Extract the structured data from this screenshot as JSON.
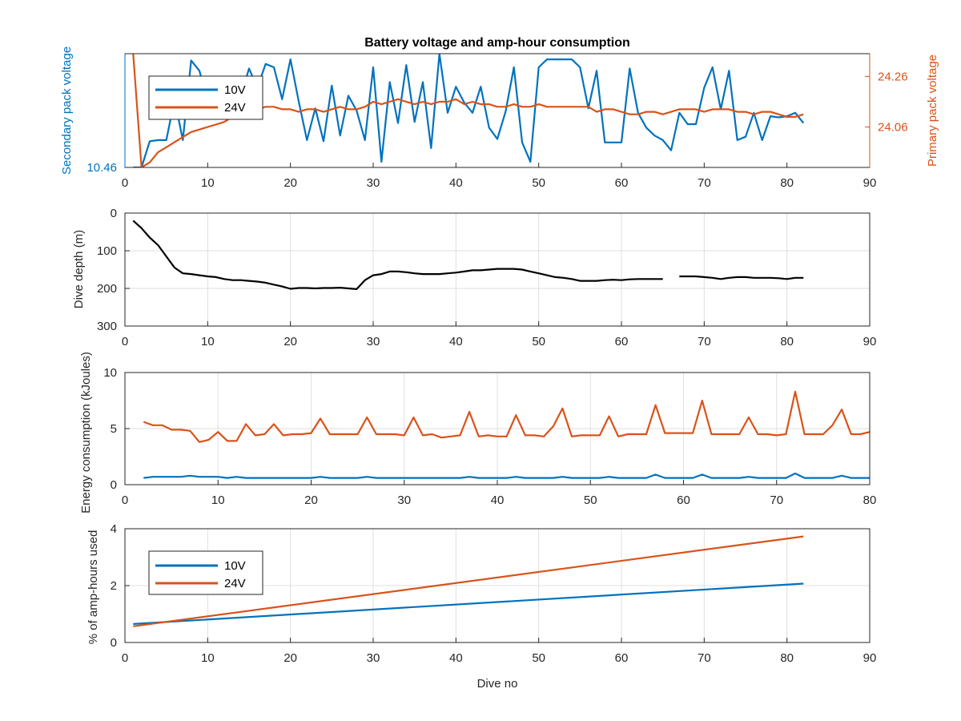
{
  "colors": {
    "blue": "#0072BD",
    "orange": "#D95319",
    "black": "#000000",
    "axis": "#262626",
    "grid": "#dfdfdf"
  },
  "chart_data": [
    {
      "type": "line",
      "title": "Battery voltage and amp-hour consumption",
      "xlim": [
        0,
        90
      ],
      "xticks": [
        "0",
        "10",
        "20",
        "30",
        "40",
        "50",
        "60",
        "70",
        "80",
        "90"
      ],
      "ylabel": "Secondary pack voltage",
      "ylim": [
        10.46,
        10.56
      ],
      "yticks": [
        "10.46"
      ],
      "ylabel_right": "Primary pack voltage",
      "ylim_right": [
        23.9,
        24.35
      ],
      "yticks_right": [
        "24.06",
        "24.26"
      ],
      "legend": {
        "location": "top-left",
        "entries": [
          "10V",
          "24V"
        ]
      },
      "grid": false,
      "series": [
        {
          "name": "10V",
          "color": "blue",
          "axis": "left",
          "x": [
            1,
            2,
            3,
            4,
            5,
            6,
            7,
            8,
            9,
            10,
            11,
            12,
            13,
            14,
            15,
            16,
            17,
            18,
            19,
            20,
            21,
            22,
            23,
            24,
            25,
            26,
            27,
            28,
            29,
            30,
            31,
            32,
            33,
            34,
            35,
            36,
            37,
            38,
            39,
            40,
            41,
            42,
            43,
            44,
            45,
            46,
            47,
            48,
            49,
            50,
            51,
            52,
            53,
            54,
            55,
            56,
            57,
            58,
            59,
            60,
            61,
            62,
            63,
            64,
            65,
            66,
            67,
            68,
            69,
            70,
            71,
            72,
            73,
            74,
            75,
            76,
            77,
            78,
            79,
            80,
            81,
            82
          ],
          "y": [
            10.46,
            10.46,
            10.483,
            10.484,
            10.484,
            10.52,
            10.484,
            10.554,
            10.545,
            10.518,
            10.515,
            10.507,
            10.513,
            10.523,
            10.547,
            10.53,
            10.551,
            10.548,
            10.52,
            10.555,
            10.518,
            10.484,
            10.512,
            10.483,
            10.532,
            10.488,
            10.523,
            10.51,
            10.484,
            10.548,
            10.465,
            10.535,
            10.499,
            10.55,
            10.5,
            10.535,
            10.477,
            10.56,
            10.508,
            10.531,
            10.517,
            10.508,
            10.531,
            10.495,
            10.485,
            10.509,
            10.548,
            10.482,
            10.465,
            10.548,
            10.555,
            10.555,
            10.555,
            10.555,
            10.548,
            10.512,
            10.545,
            10.482,
            10.482,
            10.482,
            10.547,
            10.508,
            10.495,
            10.488,
            10.484,
            10.475,
            10.508,
            10.498,
            10.498,
            10.53,
            10.548,
            10.511,
            10.545,
            10.484,
            10.487,
            10.508,
            10.484,
            10.505,
            10.504,
            10.505,
            10.508,
            10.499
          ]
        },
        {
          "name": "24V",
          "color": "orange",
          "axis": "right",
          "x": [
            1,
            2,
            3,
            4,
            5,
            6,
            7,
            8,
            9,
            10,
            11,
            12,
            13,
            14,
            15,
            16,
            17,
            18,
            19,
            20,
            21,
            22,
            23,
            24,
            25,
            26,
            27,
            28,
            29,
            30,
            31,
            32,
            33,
            34,
            35,
            36,
            37,
            38,
            39,
            40,
            41,
            42,
            43,
            44,
            45,
            46,
            47,
            48,
            49,
            50,
            51,
            52,
            53,
            54,
            55,
            56,
            57,
            58,
            59,
            60,
            61,
            62,
            63,
            64,
            65,
            66,
            67,
            68,
            69,
            70,
            71,
            72,
            73,
            74,
            75,
            76,
            77,
            78,
            79,
            80,
            81,
            82
          ],
          "y": [
            24.35,
            23.9,
            23.92,
            23.96,
            23.98,
            24.0,
            24.02,
            24.04,
            24.05,
            24.06,
            24.07,
            24.08,
            24.1,
            24.11,
            24.12,
            24.13,
            24.14,
            24.14,
            24.13,
            24.13,
            24.12,
            24.13,
            24.13,
            24.12,
            24.13,
            24.14,
            24.13,
            24.13,
            24.14,
            24.16,
            24.15,
            24.16,
            24.17,
            24.16,
            24.15,
            24.16,
            24.15,
            24.16,
            24.16,
            24.17,
            24.15,
            24.16,
            24.15,
            24.15,
            24.14,
            24.14,
            24.15,
            24.14,
            24.14,
            24.15,
            24.14,
            24.14,
            24.14,
            24.14,
            24.14,
            24.14,
            24.12,
            24.13,
            24.13,
            24.12,
            24.11,
            24.11,
            24.12,
            24.12,
            24.11,
            24.12,
            24.13,
            24.13,
            24.13,
            24.12,
            24.13,
            24.13,
            24.13,
            24.12,
            24.12,
            24.11,
            24.12,
            24.12,
            24.11,
            24.1,
            24.1,
            24.11
          ]
        }
      ]
    },
    {
      "type": "line",
      "ylabel": "Dive depth (m)",
      "xlim": [
        0,
        90
      ],
      "xticks": [
        "0",
        "10",
        "20",
        "30",
        "40",
        "50",
        "60",
        "70",
        "80",
        "90"
      ],
      "ylim": [
        0,
        300
      ],
      "y_reversed": true,
      "yticks": [
        "0",
        "100",
        "200",
        "300"
      ],
      "grid": true,
      "series": [
        {
          "color": "black",
          "axis": "left",
          "x": [
            1,
            2,
            3,
            4,
            5,
            6,
            7,
            8,
            9,
            10,
            11,
            12,
            13,
            14,
            15,
            16,
            17,
            18,
            19,
            20,
            21,
            22,
            23,
            24,
            25,
            26,
            27,
            28,
            29,
            30,
            31,
            32,
            33,
            34,
            35,
            36,
            37,
            38,
            39,
            40,
            41,
            42,
            43,
            44,
            45,
            46,
            47,
            48,
            49,
            50,
            51,
            52,
            53,
            54,
            55,
            56,
            57,
            58,
            59,
            60,
            61,
            62,
            63,
            64,
            65,
            null,
            67,
            68,
            69,
            70,
            71,
            72,
            73,
            74,
            75,
            76,
            77,
            78,
            79,
            80,
            81,
            82
          ],
          "y": [
            20,
            40,
            65,
            85,
            115,
            145,
            160,
            162,
            165,
            168,
            170,
            175,
            178,
            178,
            180,
            182,
            185,
            190,
            195,
            201,
            199,
            199,
            200,
            199,
            199,
            198,
            200,
            202,
            178,
            165,
            162,
            155,
            155,
            157,
            160,
            162,
            162,
            162,
            160,
            158,
            155,
            152,
            152,
            150,
            148,
            148,
            148,
            150,
            155,
            160,
            165,
            170,
            172,
            175,
            180,
            180,
            180,
            178,
            177,
            178,
            176,
            175,
            175,
            175,
            175,
            null,
            168,
            168,
            168,
            170,
            172,
            175,
            172,
            170,
            170,
            172,
            172,
            172,
            173,
            175,
            172,
            172
          ]
        }
      ]
    },
    {
      "type": "line",
      "ylabel": "Energy consumption (kJoules)",
      "xlim": [
        0,
        80
      ],
      "xticks": [
        "0",
        "10",
        "20",
        "30",
        "40",
        "50",
        "60",
        "70",
        "80"
      ],
      "ylim": [
        0,
        10
      ],
      "yticks": [
        "0",
        "5",
        "10"
      ],
      "grid": true,
      "series": [
        {
          "color": "orange",
          "axis": "left",
          "x": [
            2,
            3,
            4,
            5,
            6,
            7,
            8,
            9,
            10,
            11,
            12,
            13,
            14,
            15,
            16,
            17,
            18,
            19,
            20,
            21,
            22,
            23,
            24,
            25,
            26,
            27,
            28,
            29,
            30,
            31,
            32,
            33,
            34,
            35,
            36,
            37,
            38,
            39,
            40,
            41,
            42,
            43,
            44,
            45,
            46,
            47,
            48,
            49,
            50,
            51,
            52,
            53,
            54,
            55,
            56,
            57,
            58,
            59,
            60,
            61,
            62,
            63,
            64,
            65,
            66,
            67,
            68,
            69,
            70,
            71,
            72,
            73,
            74,
            75,
            76,
            77,
            78,
            79,
            80
          ],
          "y": [
            5.6,
            5.3,
            5.3,
            4.9,
            4.9,
            4.8,
            3.8,
            4.0,
            4.7,
            3.9,
            3.9,
            5.4,
            4.4,
            4.5,
            5.4,
            4.4,
            4.5,
            4.5,
            4.6,
            5.9,
            4.5,
            4.5,
            4.5,
            4.5,
            6.0,
            4.5,
            4.5,
            4.5,
            4.4,
            6.0,
            4.4,
            4.5,
            4.2,
            4.3,
            4.4,
            6.5,
            4.3,
            4.4,
            4.3,
            4.3,
            6.2,
            4.4,
            4.4,
            4.3,
            5.2,
            6.8,
            4.3,
            4.4,
            4.4,
            4.4,
            6.1,
            4.3,
            4.5,
            4.5,
            4.5,
            7.1,
            4.6,
            4.6,
            4.6,
            4.6,
            7.5,
            4.5,
            4.5,
            4.5,
            4.5,
            6.0,
            4.5,
            4.5,
            4.4,
            4.5,
            8.3,
            4.5,
            4.5,
            4.5,
            5.3,
            6.7,
            4.5,
            4.5,
            4.7
          ]
        },
        {
          "color": "blue",
          "axis": "left",
          "x": [
            2,
            3,
            4,
            5,
            6,
            7,
            8,
            9,
            10,
            11,
            12,
            13,
            14,
            15,
            16,
            17,
            18,
            19,
            20,
            21,
            22,
            23,
            24,
            25,
            26,
            27,
            28,
            29,
            30,
            31,
            32,
            33,
            34,
            35,
            36,
            37,
            38,
            39,
            40,
            41,
            42,
            43,
            44,
            45,
            46,
            47,
            48,
            49,
            50,
            51,
            52,
            53,
            54,
            55,
            56,
            57,
            58,
            59,
            60,
            61,
            62,
            63,
            64,
            65,
            66,
            67,
            68,
            69,
            70,
            71,
            72,
            73,
            74,
            75,
            76,
            77,
            78,
            79,
            80
          ],
          "y": [
            0.6,
            0.7,
            0.7,
            0.7,
            0.7,
            0.8,
            0.7,
            0.7,
            0.7,
            0.6,
            0.7,
            0.6,
            0.6,
            0.6,
            0.6,
            0.6,
            0.6,
            0.6,
            0.6,
            0.7,
            0.6,
            0.6,
            0.6,
            0.6,
            0.7,
            0.6,
            0.6,
            0.6,
            0.6,
            0.6,
            0.6,
            0.6,
            0.6,
            0.6,
            0.6,
            0.7,
            0.6,
            0.6,
            0.6,
            0.6,
            0.7,
            0.6,
            0.6,
            0.6,
            0.6,
            0.7,
            0.6,
            0.6,
            0.6,
            0.6,
            0.7,
            0.6,
            0.6,
            0.6,
            0.6,
            0.9,
            0.6,
            0.6,
            0.6,
            0.6,
            0.9,
            0.6,
            0.6,
            0.6,
            0.6,
            0.7,
            0.6,
            0.6,
            0.6,
            0.6,
            1.0,
            0.6,
            0.6,
            0.6,
            0.6,
            0.8,
            0.6,
            0.6,
            0.6
          ]
        }
      ]
    },
    {
      "type": "line",
      "ylabel": "% of amp-hours used",
      "xlabel": "Dive no",
      "xlim": [
        0,
        90
      ],
      "xticks": [
        "0",
        "10",
        "20",
        "30",
        "40",
        "50",
        "60",
        "70",
        "80",
        "90"
      ],
      "ylim": [
        0,
        4
      ],
      "yticks": [
        "0",
        "2",
        "4"
      ],
      "grid": true,
      "legend": {
        "location": "bottom-left",
        "entries": [
          "10V",
          "24V"
        ]
      },
      "series": [
        {
          "name": "10V",
          "color": "blue",
          "axis": "left",
          "x": [
            1,
            82
          ],
          "y": [
            0.65,
            2.07
          ]
        },
        {
          "name": "24V",
          "color": "orange",
          "axis": "left",
          "x": [
            1,
            82
          ],
          "y": [
            0.57,
            3.73
          ]
        }
      ]
    }
  ]
}
